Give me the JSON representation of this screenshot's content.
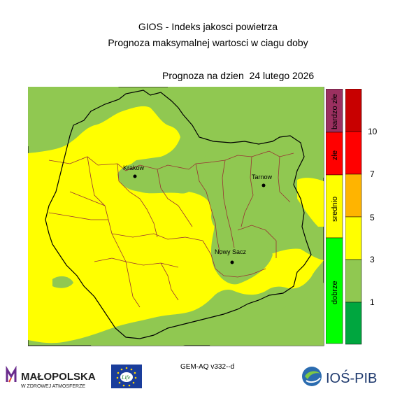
{
  "header": {
    "line1": "GIOS - Indeks jakosci powietrza",
    "line2": "Prognoza maksymalnej wartosci w ciagu doby",
    "date_line": "Prognoza na dzien  24 lutego 2026"
  },
  "map": {
    "cities": [
      {
        "name": "Krakow"
      },
      {
        "name": "Tarnow"
      },
      {
        "name": "Nowy Sacz"
      }
    ],
    "colors": {
      "background": "#90c851",
      "yellow": "#ffff00",
      "county_border": "#993333",
      "region_border": "#000000"
    }
  },
  "legend": {
    "categories": [
      {
        "label": "bardzo złe",
        "color": "#9b3060"
      },
      {
        "label": "złe",
        "color": "#ff0000"
      },
      {
        "label": "srednio",
        "color": "#ffff00"
      },
      {
        "label": "dobrze",
        "color": "#00ff00"
      }
    ],
    "scale_colors": [
      "#00a63f",
      "#90c851",
      "#ffff00",
      "#ffb400",
      "#ff0000",
      "#c80000"
    ],
    "scale_ticks": [
      "1",
      "3",
      "5",
      "7",
      "10"
    ]
  },
  "footer": {
    "model": "GEM-AQ v332--d",
    "logo_mp_text": "MAŁOPOLSKA",
    "logo_mp_sub": "W ZDROWEJ ATMOSFERZE",
    "logo_eu_text": "Life",
    "logo_ios_text": "IOŚ-PIB"
  }
}
